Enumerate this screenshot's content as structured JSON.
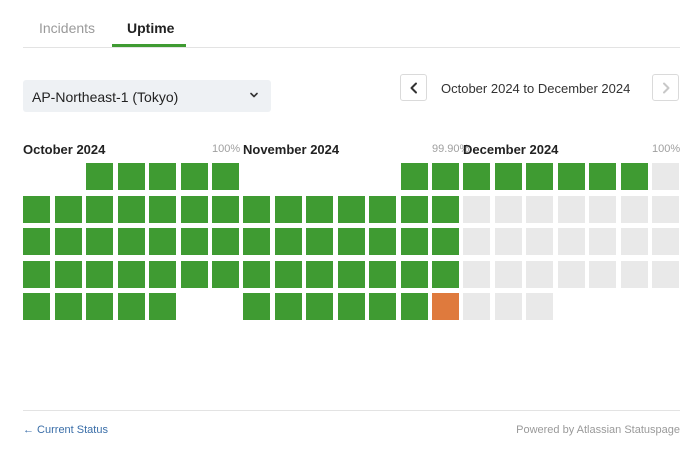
{
  "tabs": [
    {
      "label": "Incidents",
      "active": false
    },
    {
      "label": "Uptime",
      "active": true
    }
  ],
  "region_select": {
    "value": "AP-Northeast-1 (Tokyo)"
  },
  "date_range": {
    "label": "October 2024 to December 2024"
  },
  "colors": {
    "accent": "#3f9b32",
    "operational": "#3f9b32",
    "degraded": "#df7a3d",
    "no_data": "#e9e9e9"
  },
  "months": [
    {
      "title": "October 2024",
      "uptime": "100%",
      "start_weekday": 2,
      "days": [
        "up",
        "up",
        "up",
        "up",
        "up",
        "up",
        "up",
        "up",
        "up",
        "up",
        "up",
        "up",
        "up",
        "up",
        "up",
        "up",
        "up",
        "up",
        "up",
        "up",
        "up",
        "up",
        "up",
        "up",
        "up",
        "up",
        "up",
        "up",
        "up",
        "up",
        "up"
      ]
    },
    {
      "title": "November 2024",
      "uptime": "99.90%",
      "start_weekday": 5,
      "days": [
        "up",
        "up",
        "up",
        "up",
        "up",
        "up",
        "up",
        "up",
        "up",
        "up",
        "up",
        "up",
        "up",
        "up",
        "up",
        "up",
        "up",
        "up",
        "up",
        "up",
        "up",
        "up",
        "up",
        "up",
        "up",
        "up",
        "up",
        "up",
        "up",
        "degraded"
      ]
    },
    {
      "title": "December 2024",
      "uptime": "100%",
      "start_weekday": 0,
      "days": [
        "up",
        "up",
        "up",
        "up",
        "up",
        "up",
        "future",
        "future",
        "future",
        "future",
        "future",
        "future",
        "future",
        "future",
        "future",
        "future",
        "future",
        "future",
        "future",
        "future",
        "future",
        "future",
        "future",
        "future",
        "future",
        "future",
        "future",
        "future",
        "future",
        "future",
        "future"
      ]
    }
  ],
  "footer": {
    "back_link": "← Current Status",
    "powered_by": "Powered by Atlassian Statuspage"
  }
}
